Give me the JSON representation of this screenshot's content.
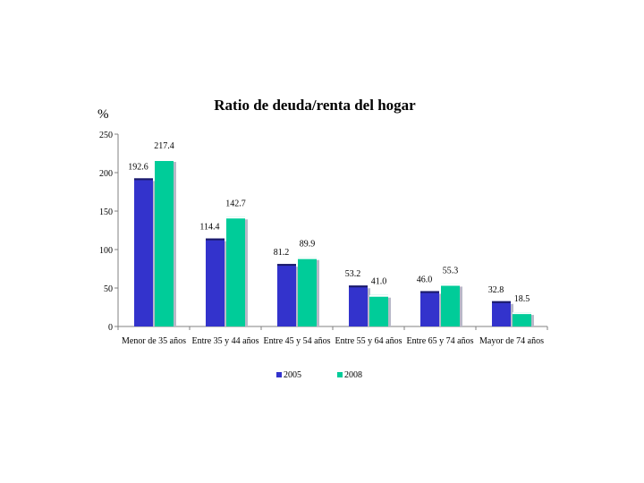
{
  "chart_data": {
    "type": "bar",
    "title": "Ratio de deuda/renta del hogar",
    "ylabel": "%",
    "xlabel": "",
    "ylim": [
      0,
      250
    ],
    "yticks": [
      0,
      50,
      100,
      150,
      200,
      250
    ],
    "grid": false,
    "legend": "bottom",
    "categories": [
      "Menor de 35 años",
      "Entre 35 y 44 años",
      "Entre 45 y 54 años",
      "Entre 55 y 64 años",
      "Entre 65 y 74 años",
      "Mayor de 74 años"
    ],
    "series": [
      {
        "name": "2005",
        "color": "#3333cc",
        "values": [
          192.6,
          114.4,
          81.2,
          53.2,
          46.0,
          32.8
        ],
        "labels": [
          "192.6",
          "114.4",
          "81.2",
          "53.2",
          "46.0",
          "32.8"
        ]
      },
      {
        "name": "2008",
        "color": "#00cc99",
        "values": [
          217.4,
          142.7,
          89.9,
          41.0,
          55.3,
          18.5
        ],
        "labels": [
          "217.4",
          "142.7",
          "89.9",
          "41.0",
          "55.3",
          "18.5"
        ]
      }
    ]
  }
}
